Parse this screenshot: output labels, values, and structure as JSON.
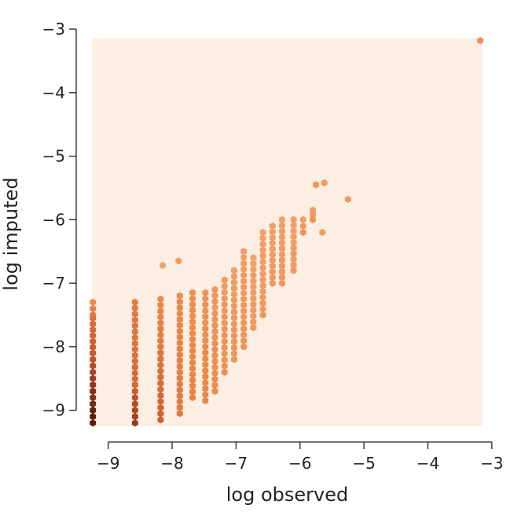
{
  "chart_data": {
    "type": "heatmap",
    "subtype": "hexbin",
    "title": "",
    "xlabel": "log observed",
    "ylabel": "log imputed",
    "xlim": [
      -9.5,
      -2.9
    ],
    "ylim": [
      -9.5,
      -2.95
    ],
    "x_ticks": [
      -9,
      -8,
      -7,
      -6,
      -5,
      -4,
      -3
    ],
    "y_ticks": [
      -9,
      -8,
      -7,
      -6,
      -5,
      -4,
      -3
    ],
    "x_tick_labels": [
      "−9",
      "−8",
      "−7",
      "−6",
      "−5",
      "−4",
      "−3"
    ],
    "y_tick_labels": [
      "−9",
      "−8",
      "−7",
      "−6",
      "−5",
      "−4",
      "−3"
    ],
    "background_region": {
      "x": [
        -9.25,
        -3.15
      ],
      "y": [
        -9.25,
        -3.15
      ]
    },
    "grid": false,
    "legend": "none",
    "colors": {
      "background_bin": "#fbeee2",
      "low": "#f5b98a",
      "mid": "#ea8a4a",
      "high": "#c8542a",
      "max": "#5c1a0c"
    },
    "bins": [
      {
        "x": -9.24,
        "y_from": -9.2,
        "y_to": -8.7,
        "density": 0.95
      },
      {
        "x": -9.24,
        "y_from": -8.7,
        "y_to": -8.1,
        "density": 0.75
      },
      {
        "x": -9.24,
        "y_from": -8.1,
        "y_to": -7.55,
        "density": 0.55
      },
      {
        "x": -9.24,
        "y_from": -7.5,
        "y_to": -7.3,
        "density": 0.35
      },
      {
        "x": -8.58,
        "y_from": -9.2,
        "y_to": -8.6,
        "density": 0.7
      },
      {
        "x": -8.58,
        "y_from": -8.6,
        "y_to": -7.3,
        "density": 0.45
      },
      {
        "x": -8.18,
        "y_from": -9.15,
        "y_to": -8.0,
        "density": 0.5
      },
      {
        "x": -8.18,
        "y_from": -8.0,
        "y_to": -7.25,
        "density": 0.35
      },
      {
        "x": -7.88,
        "y_from": -9.05,
        "y_to": -7.2,
        "density": 0.35
      },
      {
        "x": -7.68,
        "y_from": -8.8,
        "y_to": -7.15,
        "density": 0.3
      },
      {
        "x": -7.48,
        "y_from": -8.85,
        "y_to": -7.15,
        "density": 0.28
      },
      {
        "x": -7.33,
        "y_from": -8.7,
        "y_to": -7.1,
        "density": 0.25
      },
      {
        "x": -7.18,
        "y_from": -8.4,
        "y_to": -6.95,
        "density": 0.22
      },
      {
        "x": -7.03,
        "y_from": -8.2,
        "y_to": -6.8,
        "density": 0.2
      },
      {
        "x": -6.88,
        "y_from": -8.0,
        "y_to": -6.5,
        "density": 0.2
      },
      {
        "x": -6.73,
        "y_from": -7.7,
        "y_to": -6.6,
        "density": 0.18
      },
      {
        "x": -6.58,
        "y_from": -7.5,
        "y_to": -6.2,
        "density": 0.18
      },
      {
        "x": -6.43,
        "y_from": -7.0,
        "y_to": -6.1,
        "density": 0.18
      },
      {
        "x": -6.28,
        "y_from": -7.0,
        "y_to": -6.0,
        "density": 0.18
      },
      {
        "x": -6.1,
        "y_from": -6.8,
        "y_to": -6.0,
        "density": 0.18
      },
      {
        "x": -7.9,
        "y_from": -6.65,
        "y_to": -6.65,
        "density": 0.2
      },
      {
        "x": -8.15,
        "y_from": -6.72,
        "y_to": -6.72,
        "density": 0.15
      },
      {
        "x": -5.95,
        "y_from": -6.2,
        "y_to": -6.0,
        "density": 0.2
      },
      {
        "x": -5.8,
        "y_from": -6.0,
        "y_to": -5.85,
        "density": 0.2
      },
      {
        "x": -5.75,
        "y_from": -5.45,
        "y_to": -5.45,
        "density": 0.25
      },
      {
        "x": -5.62,
        "y_from": -5.42,
        "y_to": -5.42,
        "density": 0.2
      },
      {
        "x": -5.25,
        "y_from": -5.68,
        "y_to": -5.68,
        "density": 0.22
      },
      {
        "x": -5.65,
        "y_from": -6.2,
        "y_to": -6.2,
        "density": 0.2
      },
      {
        "x": -3.18,
        "y_from": -3.18,
        "y_to": -3.18,
        "density": 0.3
      }
    ]
  }
}
